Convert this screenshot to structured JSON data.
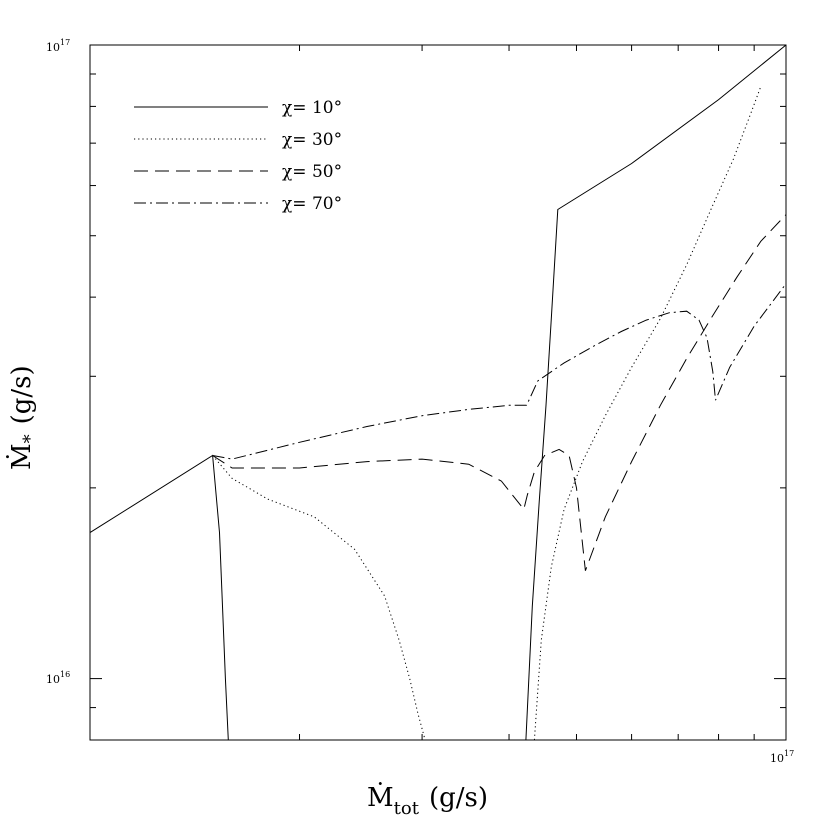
{
  "chart_data": {
    "type": "line",
    "x_scale": "log",
    "y_scale": "log",
    "xlabel": "Ṁ_tot (g/s)",
    "ylabel": "Ṁ_* (g/s)",
    "xlim": [
      1e+16,
      1e+17
    ],
    "ylim": [
      8000000000000000.0,
      1e+17
    ],
    "x_tick_labels": [
      {
        "value": 1e+17,
        "label": "10¹⁷"
      }
    ],
    "y_tick_labels": [
      {
        "value": 1e+16,
        "label": "10¹⁶"
      },
      {
        "value": 1e+17,
        "label": "10¹⁷"
      }
    ],
    "legend_position": "top-left",
    "series": [
      {
        "name": "χ= 10°",
        "dash": "solid",
        "x": [
          1e+16,
          1.5e+16,
          1.535e+16,
          1.55e+16,
          1.565e+16,
          1.58e+16
        ],
        "y": [
          1.7e+16,
          2.25e+16,
          1.7e+16,
          1.3e+16,
          1e+16,
          8000000000000000.0
        ]
      },
      {
        "name": "χ= 10°",
        "dash": "solid",
        "x": [
          4.23e+16,
          4.32e+16,
          4.42e+16,
          4.52e+16,
          4.6e+16,
          4.7e+16,
          6e+16,
          8e+16,
          1e+17
        ],
        "y": [
          8000000000000000.0,
          1.3e+16,
          1.9e+16,
          2.7e+16,
          3.7e+16,
          5.5e+16,
          6.5e+16,
          8.2e+16,
          1e+17
        ]
      },
      {
        "name": "χ= 30°",
        "dash": "dotted",
        "x": [
          1.5e+16,
          1.6e+16,
          1.8e+16,
          2.1e+16,
          2.4e+16,
          2.65e+16,
          2.78e+16,
          2.88e+16,
          2.96e+16,
          3.03e+16
        ],
        "y": [
          2.25e+16,
          2.07e+16,
          1.92e+16,
          1.8e+16,
          1.6e+16,
          1.35e+16,
          1.15e+16,
          1e+16,
          8800000000000000.0,
          8000000000000000.0
        ]
      },
      {
        "name": "χ= 30°",
        "dash": "dotted",
        "x": [
          4.35e+16,
          4.45e+16,
          4.6e+16,
          4.8e+16,
          5.1e+16,
          5.5e+16,
          6e+16,
          6.6e+16,
          7.2e+16,
          7.8e+16,
          8.4e+16,
          8.9e+16,
          9.2e+16
        ],
        "y": [
          8000000000000000.0,
          1.15e+16,
          1.5e+16,
          1.85e+16,
          2.2e+16,
          2.6e+16,
          3.1e+16,
          3.7e+16,
          4.5e+16,
          5.5e+16,
          6.6e+16,
          7.8e+16,
          8.6e+16
        ]
      },
      {
        "name": "χ= 50°",
        "dash": "dashed",
        "x": [
          1.5e+16,
          1.6e+16,
          2e+16,
          2.5e+16,
          3e+16,
          3.5e+16,
          3.9e+16,
          4.2e+16,
          4.25e+16,
          4.35e+16,
          4.5e+16,
          4.72e+16,
          4.88e+16,
          5e+16,
          5.08e+16,
          5.15e+16,
          5.5e+16,
          6e+16,
          6.6e+16,
          7.2e+16,
          7.8e+16,
          8.5e+16,
          9.2e+16,
          1e+17
        ],
        "y": [
          2.25e+16,
          2.15e+16,
          2.15e+16,
          2.2e+16,
          2.22e+16,
          2.18e+16,
          2.05e+16,
          1.85e+16,
          1.95e+16,
          2.12e+16,
          2.25e+16,
          2.3e+16,
          2.25e+16,
          2e+16,
          1.7e+16,
          1.48e+16,
          1.8e+16,
          2.2e+16,
          2.7e+16,
          3.2e+16,
          3.7e+16,
          4.3e+16,
          4.9e+16,
          5.4e+16
        ]
      },
      {
        "name": "χ= 70°",
        "dash": "dashdot",
        "x": [
          1.5e+16,
          1.6e+16,
          2e+16,
          2.5e+16,
          3e+16,
          3.5e+16,
          4e+16,
          4.24e+16,
          4.4e+16,
          4.8e+16,
          5.3e+16,
          5.8e+16,
          6.3e+16,
          6.8e+16,
          7.2e+16,
          7.5e+16,
          7.7e+16,
          7.85e+16,
          7.92e+16,
          8.3e+16,
          9e+16,
          1e+17
        ],
        "y": [
          2.25e+16,
          2.22e+16,
          2.36e+16,
          2.5e+16,
          2.6e+16,
          2.66e+16,
          2.7e+16,
          2.7e+16,
          2.95e+16,
          3.15e+16,
          3.35e+16,
          3.53e+16,
          3.68e+16,
          3.78e+16,
          3.8e+16,
          3.68e+16,
          3.45e+16,
          3.05e+16,
          2.75e+16,
          3.1e+16,
          3.6e+16,
          4.2e+16
        ]
      }
    ]
  },
  "legend": {
    "items": [
      {
        "label": "χ=  10°",
        "dash": "solid"
      },
      {
        "label": "χ=  30°",
        "dash": "dotted"
      },
      {
        "label": "χ=  50°",
        "dash": "dashed"
      },
      {
        "label": "χ=  70°",
        "dash": "dashdot"
      }
    ]
  },
  "axes": {
    "x_label_main": "Ṁ",
    "x_label_sub": "tot",
    "x_label_unit": "(g/s)",
    "y_label_main": "Ṁ",
    "y_label_sub": "*",
    "y_label_unit": "(g/s)"
  },
  "ticks": {
    "y_top": "10",
    "y_top_exp": "17",
    "y_mid": "10",
    "y_mid_exp": "16",
    "x_right": "10",
    "x_right_exp": "17"
  }
}
